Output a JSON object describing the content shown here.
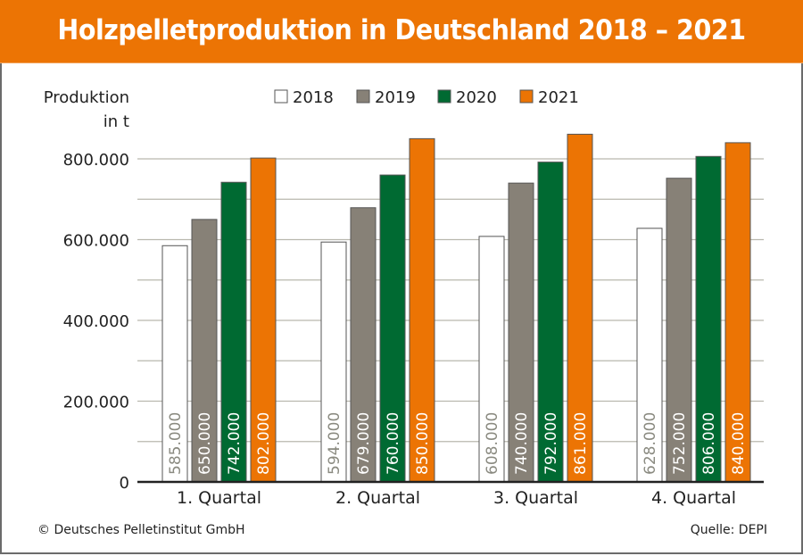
{
  "header": {
    "title": "Holzpelletproduktion in Deutschland 2018 – 2021"
  },
  "footer": {
    "copyright": "© Deutsches Pelletinstitut GmbH",
    "source": "Quelle: DEPI"
  },
  "chart_data": {
    "type": "bar",
    "title": "Holzpelletproduktion in Deutschland 2018 – 2021",
    "ylabel_line1": "Produktion",
    "ylabel_line2": "in t",
    "xlabel": "",
    "categories": [
      "1. Quartal",
      "2. Quartal",
      "3. Quartal",
      "4. Quartal"
    ],
    "series": [
      {
        "name": "2018",
        "color": "#ffffff",
        "label_color": "#8a8a80",
        "values": [
          585000,
          594000,
          608000,
          628000
        ],
        "labels": [
          "585.000",
          "594.000",
          "608.000",
          "628.000"
        ]
      },
      {
        "name": "2019",
        "color": "#878177",
        "label_color": "#ffffff",
        "values": [
          650000,
          679000,
          740000,
          752000
        ],
        "labels": [
          "650.000",
          "679.000",
          "740.000",
          "752.000"
        ]
      },
      {
        "name": "2020",
        "color": "#006a32",
        "label_color": "#ffffff",
        "values": [
          742000,
          760000,
          792000,
          806000
        ],
        "labels": [
          "742.000",
          "760.000",
          "792.000",
          "806.000"
        ]
      },
      {
        "name": "2021",
        "color": "#ec7404",
        "label_color": "#ffffff",
        "values": [
          802000,
          850000,
          861000,
          840000
        ],
        "labels": [
          "802.000",
          "850.000",
          "861.000",
          "840.000"
        ]
      }
    ],
    "ylim": [
      0,
      800000
    ],
    "yticks": [
      0,
      200000,
      400000,
      600000,
      800000
    ],
    "ytick_labels": [
      "0",
      "200.000",
      "400.000",
      "600.000",
      "800.000"
    ],
    "minor_gridlines": [
      100000,
      300000,
      500000,
      700000
    ],
    "grid": true,
    "legend_position": "top-center",
    "value_labels": "inside-bar-vertical"
  }
}
